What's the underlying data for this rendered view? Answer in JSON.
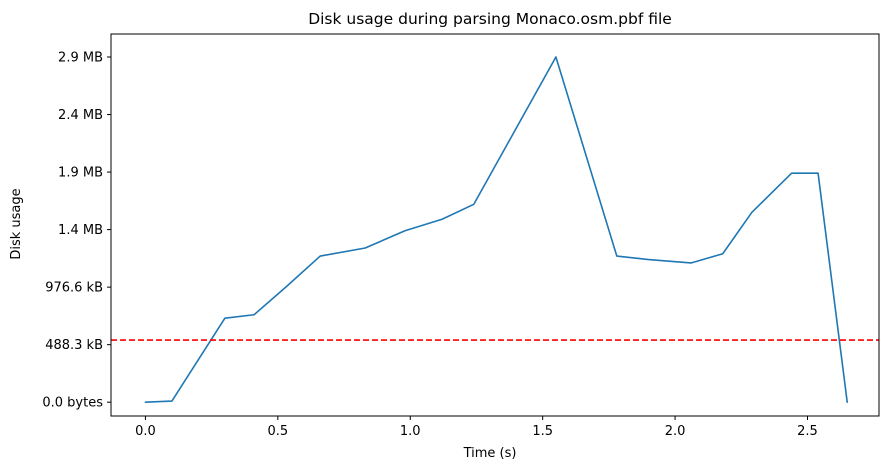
{
  "chart_data": {
    "type": "line",
    "title": "Disk usage during parsing Monaco.osm.pbf file",
    "xlabel": "Time (s)",
    "ylabel": "Disk usage",
    "xlim": [
      -0.13,
      2.77
    ],
    "ylim": [
      -120000,
      3200000
    ],
    "x_ticks": [
      {
        "value": 0.0,
        "label": "0.0"
      },
      {
        "value": 0.5,
        "label": "0.5"
      },
      {
        "value": 1.0,
        "label": "1.0"
      },
      {
        "value": 1.5,
        "label": "1.5"
      },
      {
        "value": 2.0,
        "label": "2.0"
      },
      {
        "value": 2.5,
        "label": "2.5"
      }
    ],
    "y_ticks": [
      {
        "value": 0,
        "label": "0.0 bytes"
      },
      {
        "value": 500000,
        "label": "488.3 kB"
      },
      {
        "value": 1000000,
        "label": "976.6 kB"
      },
      {
        "value": 1500000,
        "label": "1.4 MB"
      },
      {
        "value": 2000000,
        "label": "1.9 MB"
      },
      {
        "value": 2500000,
        "label": "2.4 MB"
      },
      {
        "value": 3000000,
        "label": "2.9 MB"
      }
    ],
    "grid": false,
    "series": [
      {
        "color": "#1f77b4",
        "x": [
          0.0,
          0.1,
          0.3,
          0.41,
          0.53,
          0.66,
          0.83,
          0.98,
          1.12,
          1.24,
          1.55,
          1.78,
          1.9,
          2.06,
          2.18,
          2.29,
          2.44,
          2.54,
          2.65
        ],
        "y": [
          0,
          10000,
          730000,
          760000,
          1000000,
          1270000,
          1340000,
          1490000,
          1590000,
          1720000,
          3000000,
          1270000,
          1240000,
          1210000,
          1290000,
          1650000,
          1990000,
          1990000,
          0
        ]
      }
    ],
    "reference_line": {
      "orientation": "horizontal",
      "y": 540000,
      "color": "#ff0000",
      "style": "dashed"
    }
  }
}
